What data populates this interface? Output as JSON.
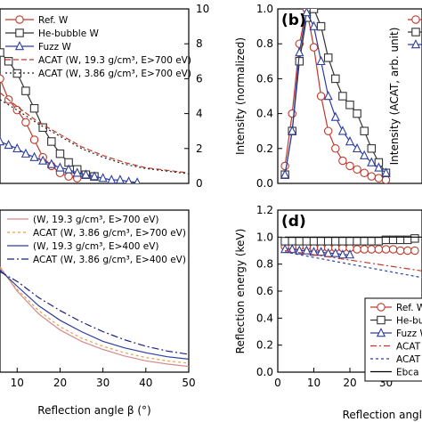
{
  "chart_data": [
    {
      "id": "a",
      "type": "line",
      "panel_label": "",
      "xlabel": "",
      "ylabel": "Intensity (ACAT, arb. unit)",
      "xlim": [
        6,
        50
      ],
      "ylim": [
        0,
        10
      ],
      "yticks": [
        0,
        2,
        4,
        6,
        8,
        10
      ],
      "xticks": [],
      "legend": "top-right",
      "series": [
        {
          "name": "Ref. W",
          "color": "#c0392b",
          "marker": "circle",
          "dash": "",
          "legend": true,
          "x": [
            6,
            8,
            10,
            12,
            14,
            16,
            18,
            20,
            22,
            24
          ],
          "y": [
            6.0,
            4.8,
            4.2,
            3.5,
            2.5,
            1.5,
            1.0,
            0.6,
            0.4,
            0.3
          ]
        },
        {
          "name": "He-bubble W",
          "color": "#333333",
          "marker": "square",
          "dash": "",
          "legend": true,
          "x": [
            6,
            8,
            10,
            12,
            14,
            16,
            18,
            20,
            22,
            24,
            26,
            28
          ],
          "y": [
            7.5,
            7.0,
            6.3,
            5.3,
            4.3,
            3.2,
            2.4,
            1.7,
            1.2,
            0.8,
            0.5,
            0.4
          ]
        },
        {
          "name": "Fuzz W",
          "color": "#2c3e9e",
          "marker": "triangle",
          "dash": "",
          "legend": true,
          "x": [
            6,
            8,
            10,
            12,
            14,
            16,
            18,
            20,
            22,
            24,
            26,
            28,
            30,
            32,
            34,
            36,
            38
          ],
          "y": [
            2.4,
            2.2,
            2.0,
            1.7,
            1.5,
            1.3,
            1.1,
            0.9,
            0.8,
            0.6,
            0.5,
            0.4,
            0.3,
            0.2,
            0.2,
            0.1,
            0.05
          ]
        },
        {
          "name": "",
          "color": "#c0392b",
          "marker": "none",
          "dash": "6,3",
          "legend": false,
          "x": [
            6,
            10,
            15,
            20,
            25,
            30,
            35,
            40,
            45,
            50
          ],
          "y": [
            5.2,
            4.4,
            3.5,
            2.8,
            2.1,
            1.6,
            1.2,
            0.9,
            0.75,
            0.6
          ]
        },
        {
          "name": "",
          "color": "#222222",
          "marker": "none",
          "dash": "2,3",
          "legend": false,
          "x": [
            6,
            10,
            15,
            20,
            25,
            30,
            35,
            40,
            45,
            50
          ],
          "y": [
            4.8,
            4.2,
            3.4,
            2.7,
            2.0,
            1.5,
            1.1,
            0.85,
            0.7,
            0.55
          ]
        }
      ],
      "legend_entries": [
        {
          "label": "Ref. W",
          "color": "#c0392b",
          "marker": "circle",
          "dash": ""
        },
        {
          "label": "He-bubble W",
          "color": "#333333",
          "marker": "square",
          "dash": ""
        },
        {
          "label": "Fuzz W",
          "color": "#2c3e9e",
          "marker": "triangle",
          "dash": ""
        },
        {
          "label": "ACAT (W, 19.3 g/cm³, E>700 eV)",
          "color": "#c0392b",
          "marker": "none",
          "dash": "6,3"
        },
        {
          "label": "ACAT (W, 3.86 g/cm³, E>700 eV)",
          "color": "#222222",
          "marker": "none",
          "dash": "2,3"
        }
      ]
    },
    {
      "id": "b",
      "type": "line",
      "panel_label": "(b)",
      "xlabel": "",
      "ylabel": "Intensity (normalized)",
      "xlim": [
        0,
        40
      ],
      "ylim": [
        0,
        1.0
      ],
      "yticks": [
        0.0,
        0.2,
        0.4,
        0.6,
        0.8,
        1.0
      ],
      "xticks": [],
      "legend": "top-right",
      "series": [
        {
          "name": "",
          "color": "#c0392b",
          "marker": "circle",
          "dash": "",
          "legend": false,
          "x": [
            2,
            4,
            6,
            8,
            10,
            12,
            14,
            16,
            18,
            20,
            22,
            24,
            26,
            28,
            30
          ],
          "y": [
            0.1,
            0.4,
            0.8,
            1.0,
            0.78,
            0.5,
            0.3,
            0.2,
            0.13,
            0.1,
            0.08,
            0.06,
            0.04,
            0.03,
            0.02
          ]
        },
        {
          "name": "",
          "color": "#333333",
          "marker": "square",
          "dash": "",
          "legend": false,
          "x": [
            2,
            4,
            6,
            8,
            10,
            12,
            14,
            16,
            18,
            20,
            22,
            24,
            26,
            28,
            30
          ],
          "y": [
            0.05,
            0.3,
            0.7,
            0.95,
            1.0,
            0.9,
            0.72,
            0.6,
            0.5,
            0.45,
            0.4,
            0.3,
            0.2,
            0.12,
            0.06
          ]
        },
        {
          "name": "",
          "color": "#2c3e9e",
          "marker": "triangle",
          "dash": "",
          "legend": false,
          "x": [
            2,
            4,
            6,
            8,
            10,
            12,
            14,
            16,
            18,
            20,
            22,
            24,
            26,
            28,
            30
          ],
          "y": [
            0.05,
            0.3,
            0.75,
            0.98,
            0.9,
            0.7,
            0.5,
            0.38,
            0.3,
            0.24,
            0.2,
            0.16,
            0.12,
            0.09,
            0.06
          ]
        }
      ],
      "legend_entries": [
        {
          "label": "",
          "color": "#c0392b",
          "marker": "circle",
          "dash": ""
        },
        {
          "label": "",
          "color": "#333333",
          "marker": "square",
          "dash": ""
        },
        {
          "label": "",
          "color": "#2c3e9e",
          "marker": "triangle",
          "dash": ""
        }
      ]
    },
    {
      "id": "c",
      "type": "line",
      "panel_label": "",
      "xlabel": "Reflection angle β (°)",
      "ylabel": "",
      "xlim": [
        6,
        50
      ],
      "ylim": [
        0,
        10
      ],
      "yticks": [],
      "xticks": [
        10,
        20,
        30,
        40,
        50
      ],
      "legend": "top-left",
      "series": [
        {
          "name": "",
          "color": "#d48a8a",
          "marker": "none",
          "dash": "",
          "legend": false,
          "x": [
            6,
            10,
            15,
            20,
            25,
            30,
            35,
            40,
            45,
            50
          ],
          "y": [
            6.5,
            5.0,
            3.6,
            2.6,
            1.9,
            1.4,
            1.0,
            0.7,
            0.5,
            0.35
          ]
        },
        {
          "name": "",
          "color": "#e0a050",
          "marker": "none",
          "dash": "3,3",
          "legend": false,
          "x": [
            6,
            10,
            15,
            20,
            25,
            30,
            35,
            40,
            45,
            50
          ],
          "y": [
            6.4,
            5.1,
            3.8,
            2.8,
            2.1,
            1.6,
            1.2,
            0.9,
            0.7,
            0.55
          ]
        },
        {
          "name": "",
          "color": "#2c3e9e",
          "marker": "none",
          "dash": "",
          "legend": false,
          "x": [
            6,
            10,
            15,
            20,
            25,
            30,
            35,
            40,
            45,
            50
          ],
          "y": [
            6.3,
            5.3,
            4.1,
            3.2,
            2.5,
            1.9,
            1.5,
            1.2,
            0.95,
            0.8
          ]
        },
        {
          "name": "",
          "color": "#1a237e",
          "marker": "none",
          "dash": "8,3,2,3",
          "legend": false,
          "x": [
            6,
            10,
            15,
            20,
            25,
            30,
            35,
            40,
            45,
            50
          ],
          "y": [
            6.2,
            5.6,
            4.6,
            3.8,
            3.1,
            2.5,
            2.0,
            1.6,
            1.3,
            1.1
          ]
        }
      ],
      "legend_entries": [
        {
          "label": "(W, 19.3 g/cm³, E>700 eV)",
          "color": "#d48a8a",
          "marker": "none",
          "dash": ""
        },
        {
          "label": "ACAT (W, 3.86 g/cm³, E>700 eV)",
          "color": "#e0a050",
          "marker": "none",
          "dash": "3,3"
        },
        {
          "label": "(W, 19.3 g/cm³, E>400 eV)",
          "color": "#2c3e9e",
          "marker": "none",
          "dash": ""
        },
        {
          "label": "ACAT (W, 3.86 g/cm³, E>400 eV)",
          "color": "#1a237e",
          "marker": "none",
          "dash": "8,3,2,3"
        }
      ]
    },
    {
      "id": "d",
      "type": "line",
      "panel_label": "(d)",
      "xlabel": "Reflection angle",
      "ylabel": "Reflection energy (keV)",
      "xlim": [
        0,
        40
      ],
      "ylim": [
        0,
        1.2
      ],
      "yticks": [
        0.0,
        0.2,
        0.4,
        0.6,
        0.8,
        1.0,
        1.2
      ],
      "xticks": [
        0,
        10,
        20,
        30
      ],
      "legend": "bottom-right",
      "series": [
        {
          "name": "",
          "color": "#c0392b",
          "marker": "circle",
          "dash": "",
          "legend": false,
          "x": [
            2,
            4,
            6,
            8,
            10,
            12,
            14,
            16,
            18,
            20,
            22,
            24,
            26,
            28,
            30,
            32,
            34,
            36,
            38
          ],
          "y": [
            0.93,
            0.93,
            0.93,
            0.93,
            0.92,
            0.92,
            0.92,
            0.92,
            0.92,
            0.92,
            0.91,
            0.91,
            0.91,
            0.91,
            0.91,
            0.91,
            0.9,
            0.9,
            0.9
          ]
        },
        {
          "name": "",
          "color": "#333333",
          "marker": "square",
          "dash": "",
          "legend": false,
          "x": [
            2,
            4,
            6,
            8,
            10,
            12,
            14,
            16,
            18,
            20,
            22,
            24,
            26,
            28,
            30,
            32,
            34,
            36,
            38
          ],
          "y": [
            0.97,
            0.97,
            0.97,
            0.97,
            0.97,
            0.97,
            0.97,
            0.97,
            0.97,
            0.97,
            0.97,
            0.97,
            0.97,
            0.97,
            0.98,
            0.98,
            0.98,
            0.98,
            0.99
          ]
        },
        {
          "name": "",
          "color": "#2c3e9e",
          "marker": "triangle",
          "dash": "",
          "legend": false,
          "x": [
            2,
            4,
            6,
            8,
            10,
            12,
            14,
            16,
            18,
            20
          ],
          "y": [
            0.91,
            0.91,
            0.9,
            0.9,
            0.89,
            0.89,
            0.88,
            0.88,
            0.87,
            0.87
          ]
        },
        {
          "name": "",
          "color": "#c0392b",
          "marker": "none",
          "dash": "7,3,2,3",
          "legend": false,
          "x": [
            2,
            10,
            20,
            30,
            40
          ],
          "y": [
            0.9,
            0.87,
            0.83,
            0.79,
            0.75
          ]
        },
        {
          "name": "",
          "color": "#2c3e9e",
          "marker": "none",
          "dash": "3,3",
          "legend": false,
          "x": [
            2,
            10,
            20,
            30,
            40
          ],
          "y": [
            0.89,
            0.85,
            0.8,
            0.75,
            0.7
          ]
        },
        {
          "name": "",
          "color": "#000000",
          "marker": "none",
          "dash": "",
          "legend": false,
          "x": [
            2,
            40
          ],
          "y": [
            1.0,
            1.0
          ]
        }
      ],
      "legend_entries": [
        {
          "label": "Ref. W",
          "color": "#c0392b",
          "marker": "circle",
          "dash": ""
        },
        {
          "label": "He-bub",
          "color": "#333333",
          "marker": "square",
          "dash": ""
        },
        {
          "label": "Fuzz W",
          "color": "#2c3e9e",
          "marker": "triangle",
          "dash": ""
        },
        {
          "label": "ACAT",
          "color": "#c0392b",
          "marker": "none",
          "dash": "7,3,2,3"
        },
        {
          "label": "ACAT",
          "color": "#2c3e9e",
          "marker": "none",
          "dash": "3,3"
        },
        {
          "label": "Ebca",
          "color": "#000000",
          "marker": "none",
          "dash": ""
        }
      ]
    }
  ]
}
